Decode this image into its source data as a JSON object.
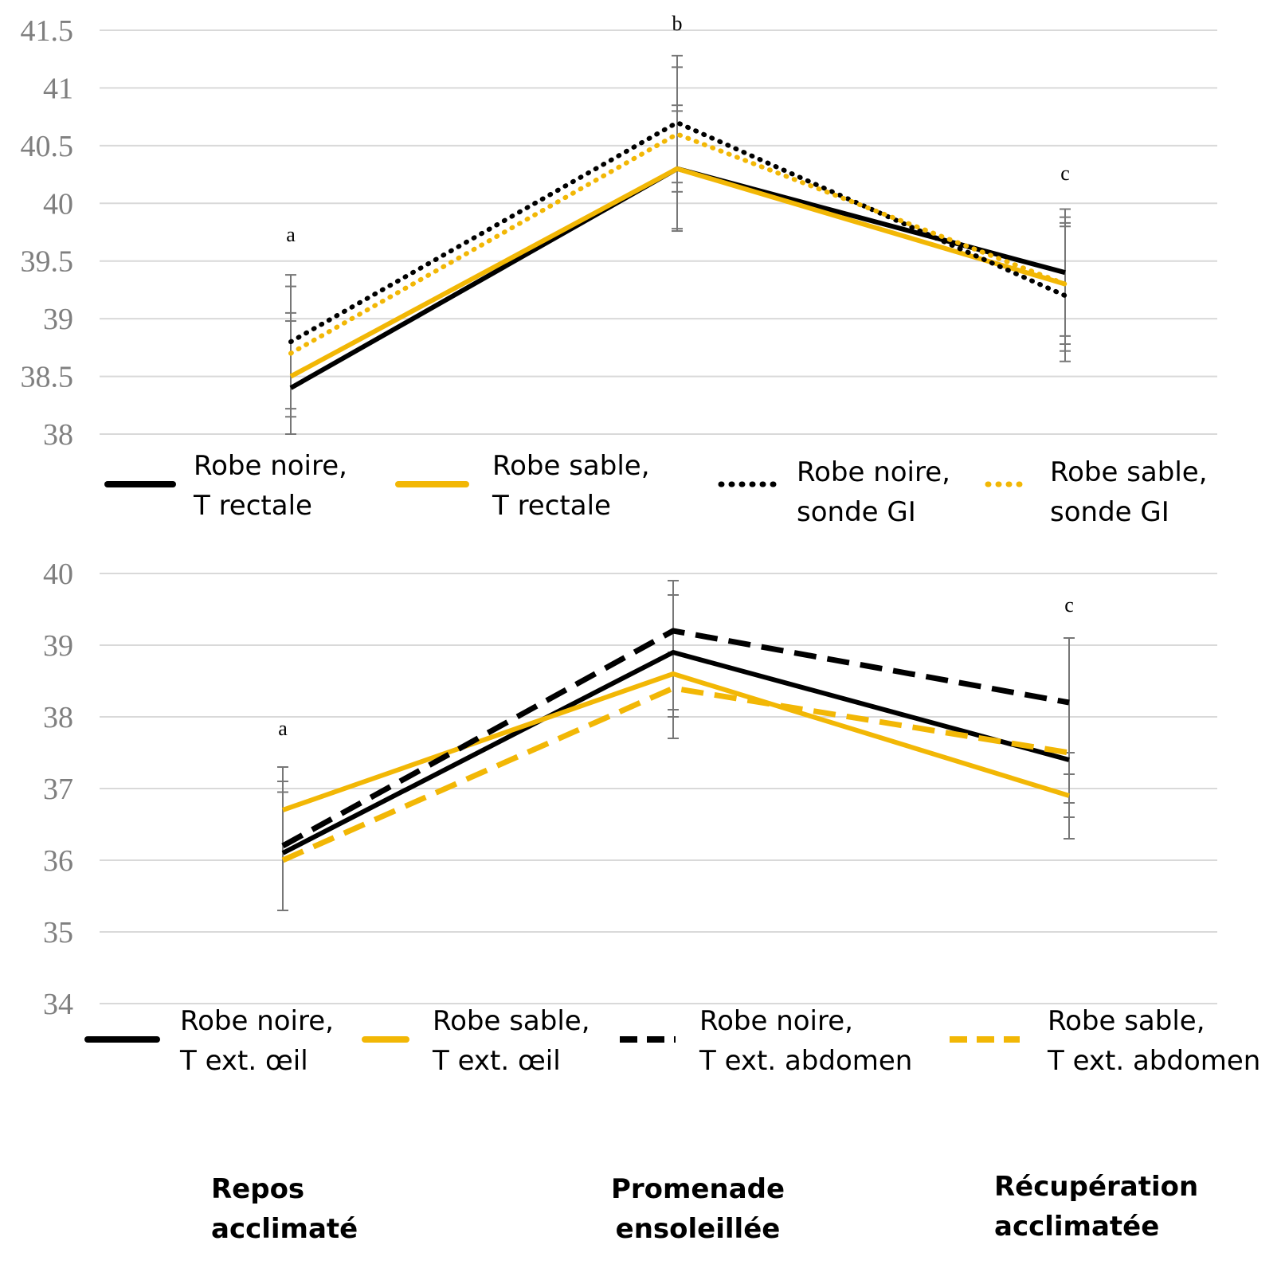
{
  "colors": {
    "noire": "#000000",
    "sable": "#f2b705",
    "grid": "#d9d9d9",
    "tick": "#7f7f7f",
    "errorbar": "#777777"
  },
  "chart_data": [
    {
      "type": "line",
      "title": "",
      "xlabel": "",
      "ylabel": "",
      "ylim": [
        38,
        41.5
      ],
      "yticks": [
        "38",
        "38.5",
        "39",
        "39.5",
        "40",
        "40.5",
        "41",
        "41.5"
      ],
      "x_positions": 3,
      "grid": true,
      "legend_placement": "bottom",
      "letters": [
        "a",
        "b",
        "c"
      ],
      "series": [
        {
          "name_l1": "Robe noire,",
          "name_l2": "T rectale",
          "color": "noire",
          "style": "solid",
          "values": [
            38.4,
            40.3,
            39.4
          ]
        },
        {
          "name_l1": "Robe sable,",
          "name_l2": "T rectale",
          "color": "sable",
          "style": "solid",
          "values": [
            38.5,
            40.3,
            39.3
          ]
        },
        {
          "name_l1": "Robe noire,",
          "name_l2": "sonde GI",
          "color": "noire",
          "style": "dotted",
          "values": [
            38.8,
            40.7,
            39.2
          ]
        },
        {
          "name_l1": "Robe sable,",
          "name_l2": "sonde GI",
          "color": "sable",
          "style": "dotted",
          "values": [
            38.7,
            40.6,
            39.3
          ]
        }
      ],
      "error_bars": [
        {
          "center": 38.6,
          "caps": [
            39.38,
            39.28,
            39.05,
            38.98,
            38.22,
            38.15,
            38.0
          ]
        },
        {
          "center": 40.5,
          "caps": [
            41.28,
            41.18,
            40.85,
            40.8,
            40.18,
            40.1,
            39.78,
            39.76
          ]
        },
        {
          "center": 39.3,
          "caps": [
            39.95,
            39.88,
            39.83,
            39.8,
            38.85,
            38.78,
            38.72,
            38.63
          ]
        }
      ]
    },
    {
      "type": "line",
      "title": "",
      "xlabel": "",
      "ylabel": "",
      "ylim": [
        34,
        40
      ],
      "yticks": [
        "34",
        "35",
        "36",
        "37",
        "38",
        "39",
        "40"
      ],
      "x_positions": 3,
      "grid": true,
      "legend_placement": "bottom",
      "letters": [
        "a",
        "",
        "c"
      ],
      "series": [
        {
          "name_l1": "Robe noire,",
          "name_l2": "T ext. œil",
          "color": "noire",
          "style": "solid",
          "values": [
            36.1,
            38.9,
            37.4
          ]
        },
        {
          "name_l1": "Robe sable,",
          "name_l2": "T ext. œil",
          "color": "sable",
          "style": "solid",
          "values": [
            36.7,
            38.6,
            36.9
          ]
        },
        {
          "name_l1": "Robe noire,",
          "name_l2": "T ext. abdomen",
          "color": "noire",
          "style": "dashed",
          "values": [
            36.2,
            39.2,
            38.2
          ]
        },
        {
          "name_l1": "Robe sable,",
          "name_l2": "T ext. abdomen",
          "color": "sable",
          "style": "dashed",
          "values": [
            36.0,
            38.4,
            37.5
          ]
        }
      ],
      "error_bars": [
        {
          "center": 36.3,
          "caps": [
            37.3,
            37.1,
            36.95,
            35.3
          ]
        },
        {
          "center": 38.8,
          "caps": [
            39.9,
            39.7,
            38.9,
            38.6,
            38.1,
            38.0,
            37.7
          ]
        },
        {
          "center": 37.3,
          "caps": [
            39.1,
            37.5,
            37.2,
            36.8,
            36.6,
            36.3
          ]
        }
      ]
    }
  ],
  "x_categories": [
    {
      "line1": "Repos",
      "line2": "acclimaté"
    },
    {
      "line1": "Promenade",
      "line2": "ensoleillée"
    },
    {
      "line1": "Récupération",
      "line2": "acclimatée"
    }
  ]
}
